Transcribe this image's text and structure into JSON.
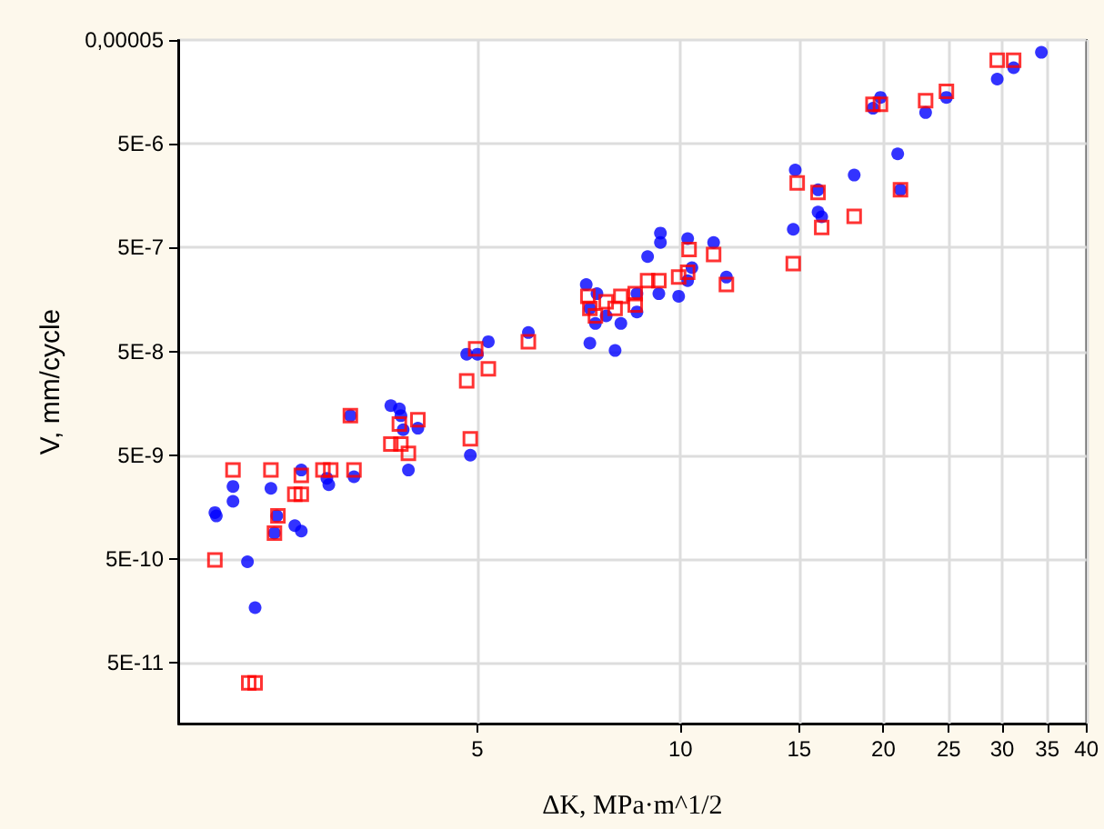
{
  "chart_data": {
    "type": "scatter",
    "xlabel": "ΔK, MPa·m^1/2",
    "ylabel": "V, mm/cycle",
    "log": "xy",
    "grid": true,
    "xlim": [
      1.8,
      40
    ],
    "xticks": [
      5,
      10,
      15,
      20,
      25,
      30,
      35,
      40
    ],
    "ylim": [
      1.3e-11,
      5e-05
    ],
    "yticks": [
      {
        "value": 5e-05,
        "label": "0,00005"
      },
      {
        "value": 5e-06,
        "label": "5E-6"
      },
      {
        "value": 5e-07,
        "label": "5E-7"
      },
      {
        "value": 5e-08,
        "label": "5E-8"
      },
      {
        "value": 5e-09,
        "label": "5E-9"
      },
      {
        "value": 5e-10,
        "label": "5E-10"
      },
      {
        "value": 5e-11,
        "label": "5E-11"
      }
    ],
    "series": [
      {
        "color": "#0000ff",
        "marker": "circle",
        "x": [
          2.04,
          2.05,
          2.17,
          2.17,
          2.28,
          2.34,
          2.47,
          2.52,
          2.5,
          2.68,
          2.74,
          2.74,
          2.99,
          3.01,
          3.24,
          3.28,
          3.72,
          3.83,
          3.85,
          3.88,
          3.95,
          4.08,
          4.82,
          5.0,
          4.88,
          5.19,
          5.95,
          7.25,
          7.52,
          7.34,
          7.48,
          7.76,
          8.16,
          7.34,
          8.0,
          8.62,
          8.62,
          8.94,
          9.29,
          9.34,
          9.34,
          9.94,
          10.25,
          10.4,
          10.25,
          11.2,
          11.7,
          14.7,
          14.8,
          16.0,
          16.0,
          16.2,
          18.1,
          21.0,
          21.2,
          19.3,
          19.8,
          23.1,
          24.8,
          29.5,
          31.2,
          34.3
        ],
        "values": [
          1.4e-09,
          1.3e-09,
          2.5e-09,
          1.8e-09,
          4.7e-10,
          1.7e-10,
          2.4e-09,
          1.3e-09,
          8.9e-10,
          1.05e-09,
          9.3e-10,
          3.6e-09,
          3e-09,
          2.6e-09,
          1.2e-08,
          3.1e-09,
          1.5e-08,
          1.4e-08,
          1.2e-08,
          8.8e-09,
          3.6e-09,
          9.1e-09,
          4.7e-08,
          4.7e-08,
          5e-09,
          6.2e-08,
          7.6e-08,
          2.2e-07,
          1.8e-07,
          1.3e-07,
          9.3e-08,
          1.1e-07,
          9.3e-08,
          6e-08,
          5.1e-08,
          1.8e-07,
          1.2e-07,
          4.1e-07,
          1.8e-07,
          6.9e-07,
          5.6e-07,
          1.7e-07,
          6.1e-07,
          3.2e-07,
          2.4e-07,
          5.6e-07,
          2.6e-07,
          7.5e-07,
          2.8e-06,
          1.8e-06,
          1.1e-06,
          9.9e-07,
          2.5e-06,
          4e-06,
          1.8e-06,
          1.1e-05,
          1.4e-05,
          1e-05,
          1.4e-05,
          2.1e-05,
          2.7e-05,
          3.8e-05
        ]
      },
      {
        "color": "#ff0000",
        "marker": "square",
        "x": [
          2.04,
          2.17,
          2.29,
          2.34,
          2.47,
          2.53,
          2.5,
          2.68,
          2.74,
          2.74,
          2.95,
          3.03,
          3.24,
          3.28,
          3.72,
          3.85,
          3.95,
          3.83,
          4.08,
          4.82,
          4.97,
          5.19,
          4.88,
          5.95,
          7.29,
          7.34,
          7.48,
          7.76,
          8.0,
          8.16,
          8.57,
          8.57,
          8.94,
          9.29,
          9.94,
          10.25,
          10.3,
          11.2,
          11.7,
          14.7,
          14.9,
          16.0,
          16.2,
          18.1,
          21.2,
          19.3,
          19.8,
          23.1,
          24.8,
          29.5,
          31.2
        ],
        "values": [
          4.9e-10,
          3.6e-09,
          3.2e-11,
          3.2e-11,
          3.6e-09,
          1.3e-09,
          8.9e-10,
          2.1e-09,
          2.1e-09,
          3.2e-09,
          3.6e-09,
          3.6e-09,
          1.2e-08,
          3.6e-09,
          6.4e-09,
          6.4e-09,
          5.2e-09,
          1e-08,
          1.1e-08,
          2.6e-08,
          5.3e-08,
          3.4e-08,
          7.2e-09,
          6.2e-08,
          1.7e-07,
          1.3e-07,
          1.1e-07,
          1.5e-07,
          1.3e-07,
          1.7e-07,
          1.8e-07,
          1.4e-07,
          2.4e-07,
          2.4e-07,
          2.6e-07,
          2.9e-07,
          4.8e-07,
          4.3e-07,
          2.2e-07,
          3.5e-07,
          2.1e-06,
          1.7e-06,
          7.8e-07,
          1e-06,
          1.8e-06,
          1.2e-05,
          1.2e-05,
          1.3e-05,
          1.6e-05,
          3.2e-05,
          3.2e-05
        ]
      }
    ]
  }
}
